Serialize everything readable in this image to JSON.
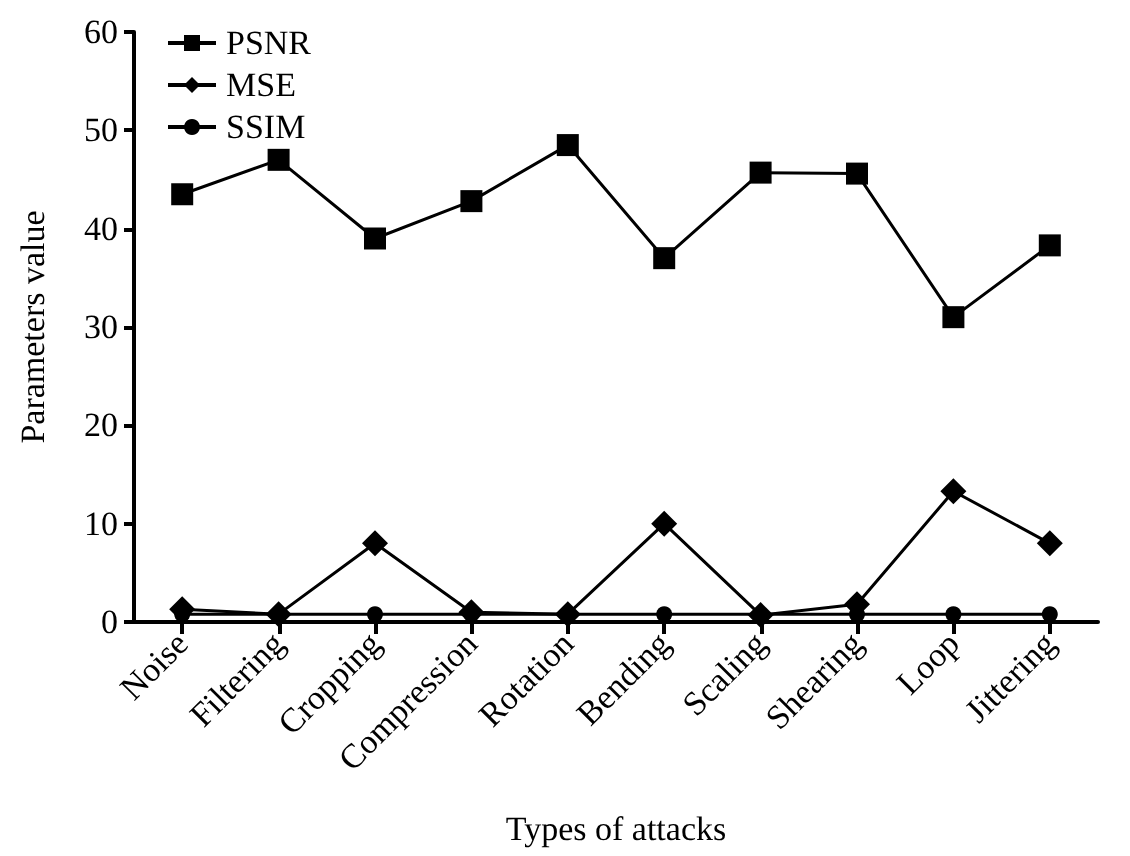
{
  "chart_data": {
    "type": "line",
    "xlabel": "Types of attacks",
    "ylabel": "Parameters value",
    "categories": [
      "Noise",
      "Filtering",
      "Cropping",
      "Compression",
      "Rotation",
      "Bending",
      "Scaling",
      "Shearing",
      "Loop",
      "Jittering"
    ],
    "series": [
      {
        "name": "PSNR",
        "color": "#000000",
        "marker": "square",
        "values": [
          43.5,
          47,
          39,
          42.8,
          48.5,
          37,
          45.7,
          45.6,
          31,
          38.3
        ]
      },
      {
        "name": "MSE",
        "color": "#000000",
        "marker": "diamond",
        "values": [
          1.3,
          0.8,
          8,
          1,
          0.8,
          10,
          0.7,
          1.8,
          13.3,
          8
        ]
      },
      {
        "name": "SSIM",
        "color": "#000000",
        "marker": "circle",
        "values": [
          0.8,
          0.8,
          0.8,
          0.8,
          0.8,
          0.8,
          0.8,
          0.8,
          0.8,
          0.8
        ]
      }
    ],
    "ylim": [
      0,
      60
    ],
    "yticks": [
      0,
      10,
      20,
      30,
      40,
      50,
      60
    ],
    "grid": false,
    "legend": "top left",
    "line_style": "solid"
  }
}
